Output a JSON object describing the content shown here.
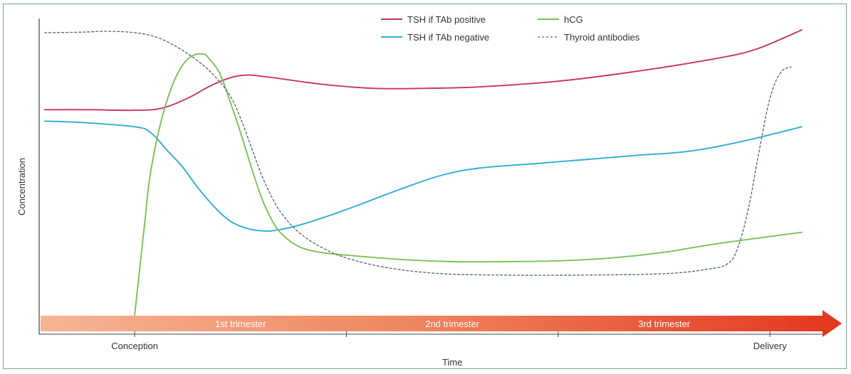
{
  "chart_data": {
    "type": "line",
    "title": "",
    "xlabel": "Time",
    "ylabel": "Concentration",
    "x_ticks": [
      {
        "label": "Conception",
        "x": 0
      },
      {
        "label": "",
        "x": 40
      },
      {
        "label": "",
        "x": 80
      },
      {
        "label": "Delivery",
        "x": 120
      }
    ],
    "trimesters": [
      {
        "label": "1st trimester",
        "x": 0
      },
      {
        "label": "2nd trimester",
        "x": 40
      },
      {
        "label": "3rd trimester",
        "x": 80
      }
    ],
    "xlim": [
      -17.5,
      131
    ],
    "ylim": [
      0,
      100
    ],
    "grid": false,
    "legend_position": "top-right",
    "series": [
      {
        "name": "TSH if TAb positive",
        "color": "#c8365e",
        "dash": "solid",
        "points": [
          [
            -17,
            72
          ],
          [
            -9,
            72
          ],
          [
            0,
            71.8
          ],
          [
            5,
            72.5
          ],
          [
            10,
            76
          ],
          [
            15,
            81
          ],
          [
            20,
            84
          ],
          [
            25,
            83.5
          ],
          [
            35,
            81
          ],
          [
            45,
            79.5
          ],
          [
            55,
            79.5
          ],
          [
            65,
            80
          ],
          [
            80,
            82
          ],
          [
            95,
            85.5
          ],
          [
            110,
            90
          ],
          [
            117,
            93
          ],
          [
            123,
            97.5
          ],
          [
            126,
            100
          ]
        ]
      },
      {
        "name": "TSH if TAb negative",
        "color": "#2eaed4",
        "dash": "solid",
        "points": [
          [
            -17,
            68
          ],
          [
            -10,
            67.5
          ],
          [
            0,
            66
          ],
          [
            3,
            64
          ],
          [
            6,
            58
          ],
          [
            9,
            52
          ],
          [
            12,
            44.5
          ],
          [
            15,
            38
          ],
          [
            18,
            33
          ],
          [
            21,
            30.5
          ],
          [
            24,
            29.5
          ],
          [
            27,
            29.8
          ],
          [
            32,
            32
          ],
          [
            40,
            37
          ],
          [
            50,
            44
          ],
          [
            58,
            49
          ],
          [
            65,
            51.5
          ],
          [
            75,
            53
          ],
          [
            85,
            54.5
          ],
          [
            95,
            56
          ],
          [
            105,
            57.5
          ],
          [
            115,
            61
          ],
          [
            126,
            66
          ]
        ]
      },
      {
        "name": "hCG",
        "color": "#7cc055",
        "dash": "solid",
        "points": [
          [
            0,
            0
          ],
          [
            1,
            17
          ],
          [
            2,
            34
          ],
          [
            3,
            50
          ],
          [
            5,
            68
          ],
          [
            7,
            80
          ],
          [
            9,
            87.5
          ],
          [
            11,
            91
          ],
          [
            13,
            91.5
          ],
          [
            14,
            90
          ],
          [
            16,
            85
          ],
          [
            18,
            75
          ],
          [
            20,
            64
          ],
          [
            22,
            52
          ],
          [
            24,
            41
          ],
          [
            26,
            33
          ],
          [
            28,
            28
          ],
          [
            31,
            24
          ],
          [
            35,
            22
          ],
          [
            40,
            21
          ],
          [
            50,
            19.5
          ],
          [
            60,
            18.7
          ],
          [
            70,
            18.7
          ],
          [
            80,
            19
          ],
          [
            90,
            20
          ],
          [
            100,
            22
          ],
          [
            110,
            25
          ],
          [
            126,
            29
          ]
        ]
      },
      {
        "name": "Thyroid antibodies",
        "color": "#4f6478",
        "dash": "dashed",
        "points": [
          [
            -17,
            99
          ],
          [
            -10,
            99.2
          ],
          [
            -5,
            99.5
          ],
          [
            0,
            99
          ],
          [
            4,
            97.5
          ],
          [
            8,
            94
          ],
          [
            12,
            89
          ],
          [
            15,
            84
          ],
          [
            18,
            77
          ],
          [
            20,
            69
          ],
          [
            22,
            59
          ],
          [
            24,
            49
          ],
          [
            26,
            41
          ],
          [
            28,
            35
          ],
          [
            31,
            29
          ],
          [
            35,
            24
          ],
          [
            40,
            20
          ],
          [
            48,
            16.5
          ],
          [
            58,
            14.5
          ],
          [
            70,
            14
          ],
          [
            85,
            14
          ],
          [
            100,
            14.5
          ],
          [
            108,
            16
          ],
          [
            112,
            18
          ],
          [
            114,
            24
          ],
          [
            116,
            38
          ],
          [
            118,
            58
          ],
          [
            120,
            76
          ],
          [
            122,
            85
          ],
          [
            124,
            87
          ]
        ]
      }
    ]
  }
}
